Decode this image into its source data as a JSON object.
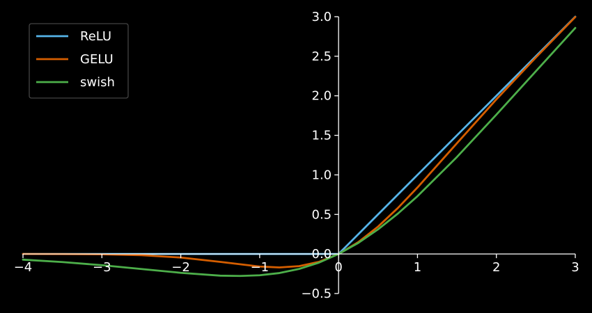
{
  "chart_data": {
    "type": "line",
    "title": "",
    "xlabel": "",
    "ylabel": "",
    "xlim": [
      -4,
      3
    ],
    "ylim": [
      -0.5,
      3.0
    ],
    "x_ticks": [
      -4,
      -3,
      -2,
      -1,
      0,
      1,
      2,
      3
    ],
    "x_tick_labels": [
      "−4",
      "−3",
      "−2",
      "−1",
      "0",
      "1",
      "2",
      "3"
    ],
    "y_ticks": [
      -0.5,
      0.0,
      0.5,
      1.0,
      1.5,
      2.0,
      2.5,
      3.0
    ],
    "y_tick_labels": [
      "−0.5",
      "0.0",
      "0.5",
      "1.0",
      "1.5",
      "2.0",
      "2.5",
      "3.0"
    ],
    "spines": "centered at origin",
    "grid": false,
    "legend": "top-left",
    "background": "#000000",
    "series": [
      {
        "name": "ReLU",
        "color": "#56b4e9",
        "x": [
          -4,
          -3.5,
          -3,
          -2.5,
          -2,
          -1.5,
          -1,
          -0.75,
          -0.5,
          -0.25,
          0,
          0.25,
          0.5,
          0.75,
          1,
          1.5,
          2,
          2.5,
          3
        ],
        "y": [
          0,
          0,
          0,
          0,
          0,
          0,
          0,
          0,
          0,
          0,
          0,
          0.25,
          0.5,
          0.75,
          1,
          1.5,
          2,
          2.5,
          3
        ]
      },
      {
        "name": "GELU",
        "color": "#d55e00",
        "x": [
          -4,
          -3.5,
          -3,
          -2.5,
          -2,
          -1.5,
          -1,
          -0.75,
          -0.5,
          -0.25,
          0,
          0.25,
          0.5,
          0.75,
          1,
          1.5,
          2,
          2.5,
          3
        ],
        "y": [
          -0.0001,
          -0.0008,
          -0.004,
          -0.015,
          -0.045,
          -0.1,
          -0.159,
          -0.17,
          -0.154,
          -0.1,
          0,
          0.15,
          0.346,
          0.58,
          0.841,
          1.4,
          1.955,
          2.484,
          2.996
        ]
      },
      {
        "name": "swish",
        "color": "#4daf4a",
        "x": [
          -4,
          -3.5,
          -3,
          -2.5,
          -2,
          -1.5,
          -1.25,
          -1,
          -0.75,
          -0.5,
          -0.25,
          0,
          0.25,
          0.5,
          0.75,
          1,
          1.5,
          2,
          2.5,
          3
        ],
        "y": [
          -0.072,
          -0.102,
          -0.142,
          -0.19,
          -0.238,
          -0.274,
          -0.278,
          -0.269,
          -0.241,
          -0.189,
          -0.11,
          0,
          0.14,
          0.311,
          0.509,
          0.731,
          1.226,
          1.762,
          2.31,
          2.858
        ]
      }
    ]
  }
}
